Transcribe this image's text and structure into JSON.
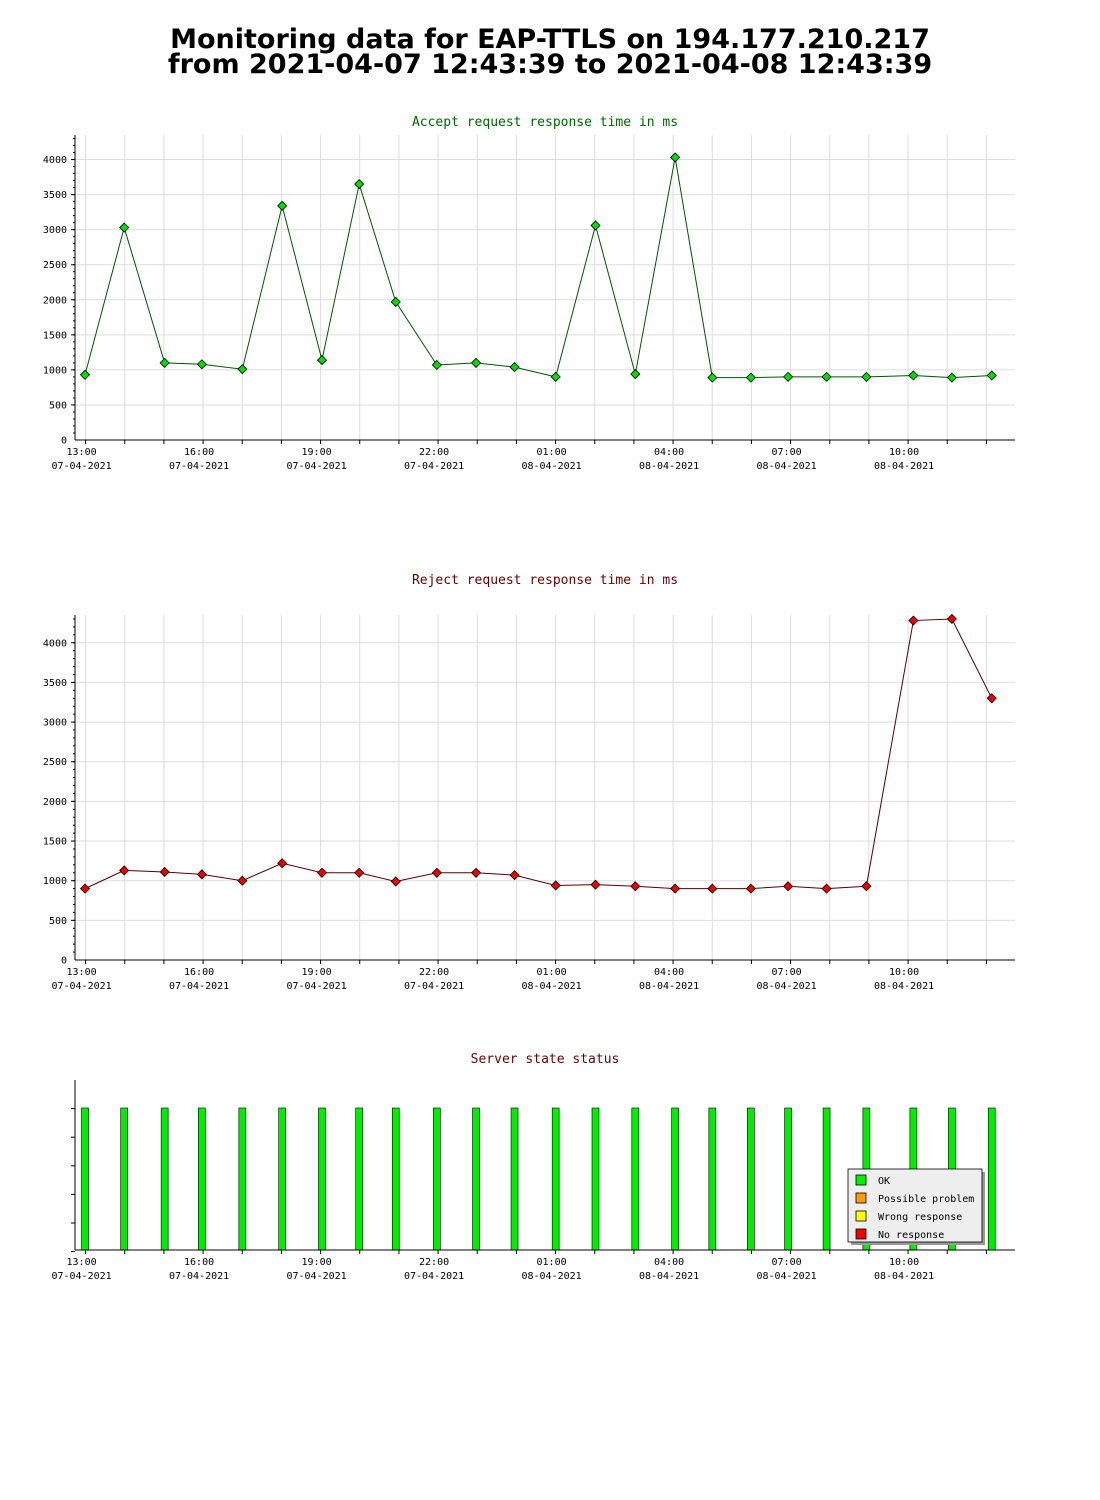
{
  "header": {
    "line1": "Monitoring data for EAP-TTLS on 194.177.210.217",
    "line2": "from 2021-04-07 12:43:39 to 2021-04-08 12:43:39"
  },
  "x_axis": {
    "ticks": [
      {
        "hours": 0.27,
        "time": "13:00",
        "date": "07-04-2021"
      },
      {
        "hours": 3.27,
        "time": "16:00",
        "date": "07-04-2021"
      },
      {
        "hours": 6.27,
        "time": "19:00",
        "date": "07-04-2021"
      },
      {
        "hours": 9.27,
        "time": "22:00",
        "date": "07-04-2021"
      },
      {
        "hours": 12.27,
        "time": "01:00",
        "date": "08-04-2021"
      },
      {
        "hours": 15.27,
        "time": "04:00",
        "date": "08-04-2021"
      },
      {
        "hours": 18.27,
        "time": "07:00",
        "date": "08-04-2021"
      },
      {
        "hours": 21.27,
        "time": "10:00",
        "date": "08-04-2021"
      }
    ]
  },
  "chart_data": [
    {
      "type": "line",
      "title": "Accept request response time in ms",
      "title_color": "#006600",
      "line_color": "#005500",
      "marker_color": "#00dd00",
      "marker": "diamond",
      "y_ticks": [
        0,
        500,
        1000,
        1500,
        2000,
        2500,
        3000,
        3500,
        4000
      ],
      "ylim": [
        0,
        4350
      ],
      "grid": true,
      "x": [
        "12:59",
        "13:59",
        "15:01",
        "15:58",
        "17:00",
        "18:01",
        "19:02",
        "19:59",
        "20:55",
        "21:58",
        "22:58",
        "23:57",
        "01:00",
        "02:01",
        "03:02",
        "04:03",
        "05:00",
        "05:59",
        "06:56",
        "07:55",
        "08:56",
        "10:08",
        "11:07",
        "12:08"
      ],
      "values": [
        930,
        3030,
        1100,
        1080,
        1010,
        3340,
        1140,
        3650,
        1970,
        1070,
        1100,
        1040,
        900,
        3060,
        940,
        4030,
        890,
        890,
        900,
        900,
        900,
        920,
        890,
        920
      ]
    },
    {
      "type": "line",
      "title": "Reject request response time in ms",
      "title_color": "#660000",
      "line_color": "#550000",
      "marker_color": "#ee0000",
      "marker": "diamond",
      "y_ticks": [
        0,
        500,
        1000,
        1500,
        2000,
        2500,
        3000,
        3500,
        4000
      ],
      "ylim": [
        0,
        4350
      ],
      "grid": true,
      "x": [
        "12:59",
        "13:59",
        "15:01",
        "15:58",
        "17:00",
        "18:01",
        "19:02",
        "19:59",
        "20:55",
        "21:58",
        "22:58",
        "23:57",
        "01:00",
        "02:01",
        "03:02",
        "04:03",
        "05:00",
        "05:59",
        "06:56",
        "07:55",
        "08:56",
        "10:08",
        "11:07",
        "12:08"
      ],
      "values": [
        900,
        1130,
        1110,
        1080,
        1000,
        1220,
        1100,
        1100,
        990,
        1100,
        1100,
        1070,
        940,
        950,
        930,
        900,
        900,
        900,
        930,
        900,
        930,
        4280,
        4300,
        3300
      ]
    },
    {
      "type": "bar",
      "title": "Server state status",
      "title_color": "#660000",
      "bar_color": "#00ee00",
      "grid": false,
      "x": [
        "12:59",
        "13:59",
        "15:01",
        "15:58",
        "17:00",
        "18:01",
        "19:02",
        "19:59",
        "20:55",
        "21:58",
        "22:58",
        "23:57",
        "01:00",
        "02:01",
        "03:02",
        "04:03",
        "05:00",
        "05:59",
        "06:56",
        "07:55",
        "08:56",
        "10:08",
        "11:07",
        "12:08"
      ],
      "values": [
        "OK",
        "OK",
        "OK",
        "OK",
        "OK",
        "OK",
        "OK",
        "OK",
        "OK",
        "OK",
        "OK",
        "OK",
        "OK",
        "OK",
        "OK",
        "OK",
        "OK",
        "OK",
        "OK",
        "OK",
        "OK",
        "OK",
        "OK",
        "OK"
      ],
      "legend_position": "bottom-right",
      "legend": [
        {
          "label": "OK",
          "color": "#00ee00"
        },
        {
          "label": "Possible problem",
          "color": "#ff9900"
        },
        {
          "label": "Wrong response",
          "color": "#ffff00"
        },
        {
          "label": "No response",
          "color": "#ee0000"
        }
      ]
    }
  ]
}
